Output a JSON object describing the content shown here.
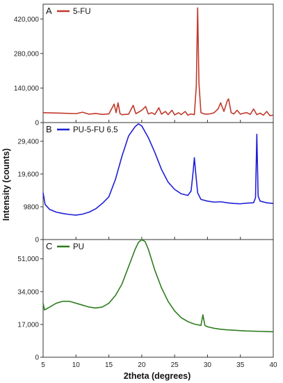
{
  "chart_data": {
    "type": "line",
    "xlabel": "2theta (degrees)",
    "ylabel": "Intensity (counts)",
    "x_ticks": [
      5,
      10,
      15,
      20,
      25,
      30,
      35,
      40
    ],
    "xlim": [
      5,
      40
    ],
    "panels": [
      {
        "letter": "A",
        "series_name": "5-FU",
        "color": "#c0392b",
        "ylim": [
          0,
          480000
        ],
        "y_ticks": [
          0,
          140000,
          280000,
          420000
        ],
        "y_tick_labels": [
          "0",
          "140,000",
          "280,000",
          "420,000"
        ],
        "x": [
          5,
          8,
          10,
          11,
          12,
          13,
          14,
          15,
          15.8,
          16.1,
          16.4,
          16.7,
          17,
          18,
          18.7,
          19.1,
          19.5,
          20,
          20.6,
          21,
          21.5,
          22,
          22.6,
          23,
          23.6,
          24,
          24.6,
          25,
          25.6,
          26,
          26.6,
          27,
          27.5,
          28,
          28.3,
          28.5,
          28.7,
          29,
          29.5,
          30,
          30.5,
          31,
          31.6,
          32,
          32.5,
          33,
          33.2,
          33.6,
          34,
          34.5,
          35,
          35.5,
          36,
          36.5,
          37,
          37.5,
          38,
          38.5,
          39,
          39.5,
          40
        ],
        "y": [
          40000,
          38000,
          36000,
          42000,
          34000,
          37000,
          33000,
          35000,
          75000,
          40000,
          80000,
          36000,
          32000,
          34000,
          70000,
          36000,
          42000,
          50000,
          65000,
          35000,
          40000,
          33000,
          60000,
          34000,
          45000,
          32000,
          50000,
          31000,
          40000,
          32000,
          45000,
          30000,
          35000,
          32000,
          150000,
          465000,
          160000,
          40000,
          35000,
          34000,
          36000,
          40000,
          55000,
          80000,
          45000,
          88000,
          96000,
          40000,
          35000,
          50000,
          34000,
          38000,
          40000,
          33000,
          55000,
          32000,
          38000,
          30000,
          45000,
          28000,
          30000
        ]
      },
      {
        "letter": "B",
        "series_name": "PU-5-FU 6.5",
        "color": "#1f1fd6",
        "ylim": [
          0,
          35000
        ],
        "y_ticks": [
          0,
          9800,
          19600,
          29400
        ],
        "y_tick_labels": [
          "0",
          "9800",
          "19,600",
          "29,400"
        ],
        "x": [
          5,
          5.3,
          6,
          7,
          8,
          9,
          10,
          11,
          12,
          13,
          14,
          15,
          16,
          17,
          18,
          19,
          19.5,
          20,
          21,
          22,
          23,
          24,
          25,
          26,
          27,
          27.5,
          27.8,
          28,
          28.2,
          28.5,
          29,
          30,
          31,
          32,
          33,
          34,
          35,
          36,
          37,
          37.3,
          37.5,
          37.7,
          38,
          39,
          40
        ],
        "y": [
          14000,
          10500,
          9000,
          8200,
          7800,
          7500,
          7300,
          7600,
          8200,
          9200,
          10800,
          12800,
          18000,
          25000,
          31000,
          33800,
          34600,
          34000,
          30500,
          26000,
          21000,
          17200,
          15000,
          13700,
          13200,
          14500,
          20000,
          24500,
          20000,
          14000,
          12000,
          11500,
          11200,
          11300,
          11000,
          10800,
          10700,
          10900,
          11000,
          12500,
          31500,
          13000,
          11500,
          11000,
          10800
        ]
      },
      {
        "letter": "C",
        "series_name": "PU",
        "color": "#2e7d1f",
        "ylim": [
          0,
          61000
        ],
        "y_ticks": [
          0,
          17000,
          34000,
          51000
        ],
        "y_tick_labels": [
          "0",
          "17,000",
          "34,000",
          "51,000"
        ],
        "x": [
          5,
          5.2,
          6,
          7,
          8,
          9,
          10,
          11,
          12,
          13,
          14,
          15,
          16,
          17,
          18,
          19,
          19.5,
          20,
          20.5,
          21,
          22,
          23,
          24,
          25,
          26,
          27,
          28,
          29,
          29.3,
          29.6,
          30,
          31,
          32,
          33,
          34,
          35,
          36,
          37,
          38,
          39,
          40
        ],
        "y": [
          28000,
          24500,
          26000,
          28000,
          29000,
          29000,
          28000,
          27000,
          26000,
          25500,
          26000,
          28000,
          32000,
          38000,
          47000,
          56000,
          59500,
          61000,
          60000,
          56000,
          45000,
          36000,
          29000,
          24000,
          20500,
          18500,
          17200,
          16500,
          22000,
          16500,
          15800,
          15000,
          14500,
          14200,
          14000,
          13800,
          13600,
          13500,
          13400,
          13300,
          13200
        ]
      }
    ]
  }
}
